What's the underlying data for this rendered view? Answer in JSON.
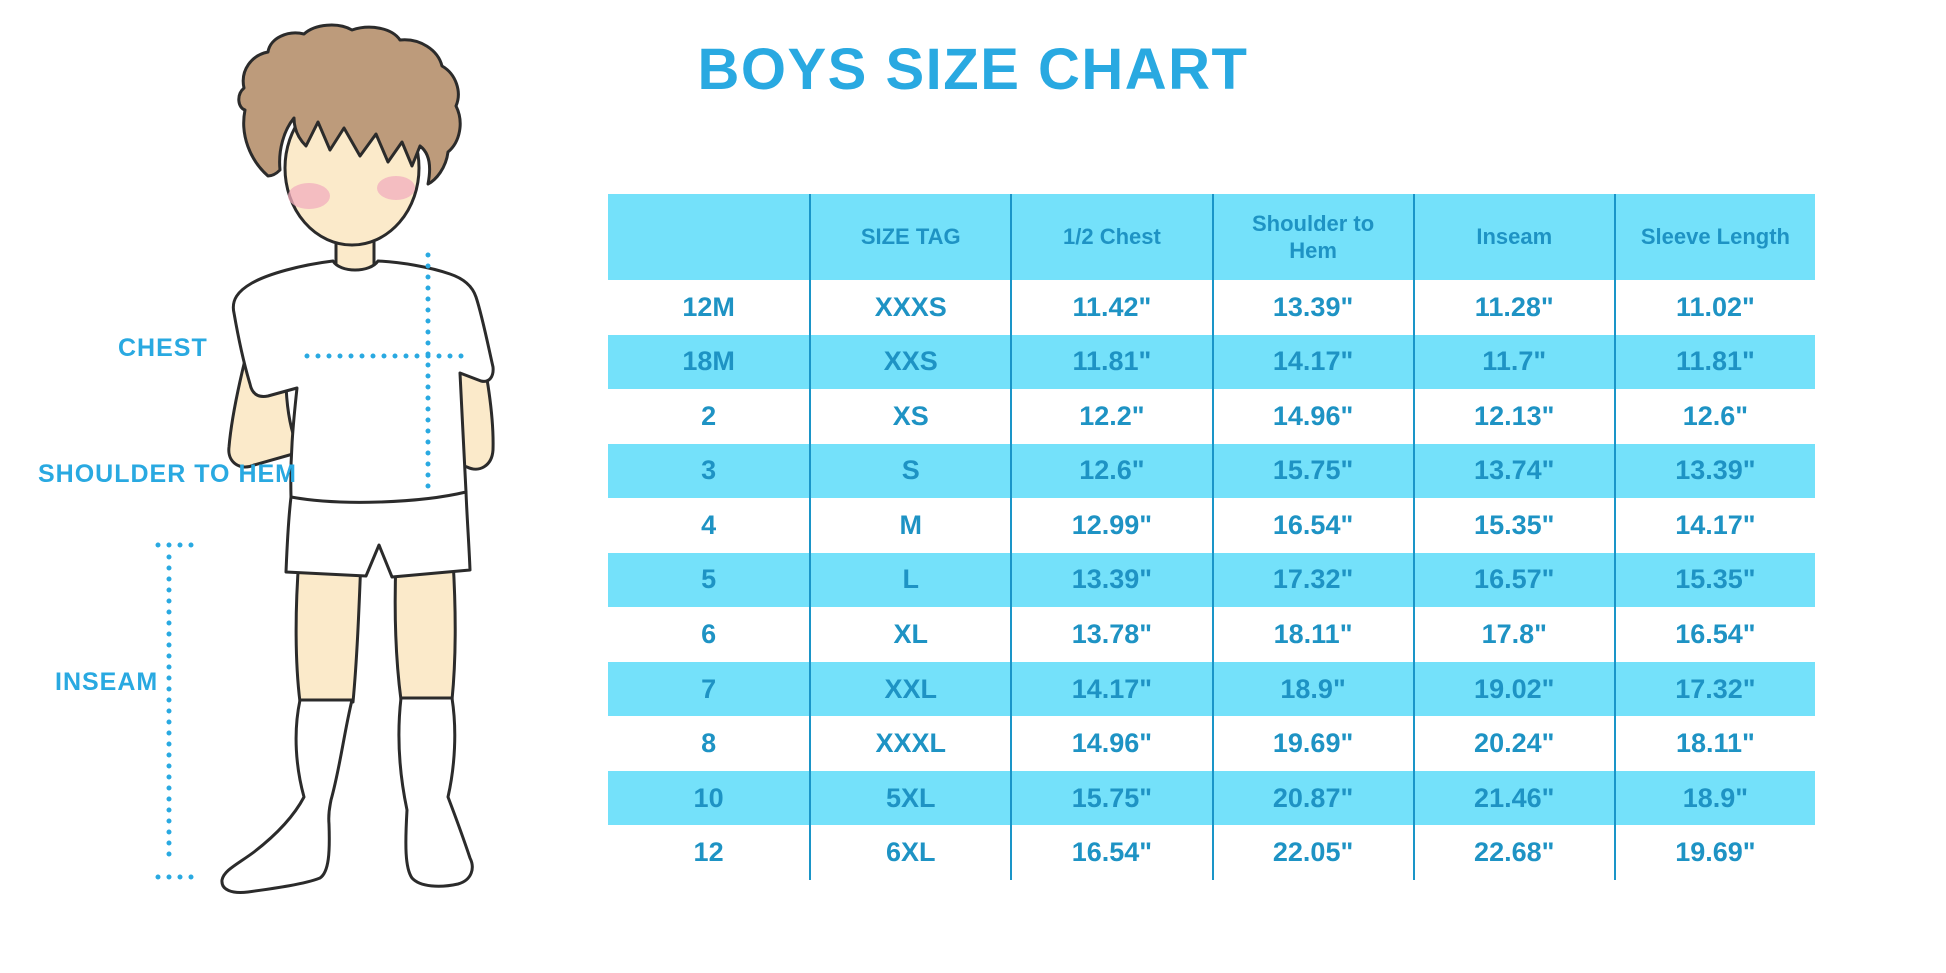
{
  "title": "BOYS SIZE CHART",
  "figure": {
    "labels": {
      "chest": "CHEST",
      "shoulder_to_hem": "SHOULDER TO HEM",
      "inseam": "INSEAM"
    }
  },
  "chart_data": {
    "type": "table",
    "title": "BOYS SIZE CHART",
    "columns": [
      "",
      "SIZE TAG",
      "1/2 Chest",
      "Shoulder to\nHem",
      "Inseam",
      "Sleeve Length"
    ],
    "rows": [
      [
        "12M",
        "XXXS",
        "11.42\"",
        "13.39\"",
        "11.28\"",
        "11.02\""
      ],
      [
        "18M",
        "XXS",
        "11.81\"",
        "14.17\"",
        "11.7\"",
        "11.81\""
      ],
      [
        "2",
        "XS",
        "12.2\"",
        "14.96\"",
        "12.13\"",
        "12.6\""
      ],
      [
        "3",
        "S",
        "12.6\"",
        "15.75\"",
        "13.74\"",
        "13.39\""
      ],
      [
        "4",
        "M",
        "12.99\"",
        "16.54\"",
        "15.35\"",
        "14.17\""
      ],
      [
        "5",
        "L",
        "13.39\"",
        "17.32\"",
        "16.57\"",
        "15.35\""
      ],
      [
        "6",
        "XL",
        "13.78\"",
        "18.11\"",
        "17.8\"",
        "16.54\""
      ],
      [
        "7",
        "XXL",
        "14.17\"",
        "18.9\"",
        "19.02\"",
        "17.32\""
      ],
      [
        "8",
        "XXXL",
        "14.96\"",
        "19.69\"",
        "20.24\"",
        "18.11\""
      ],
      [
        "10",
        "5XL",
        "15.75\"",
        "20.87\"",
        "21.46\"",
        "18.9\""
      ],
      [
        "12",
        "6XL",
        "16.54\"",
        "22.05\"",
        "22.68\"",
        "19.69\""
      ]
    ],
    "highlighted_row_indices": [
      1,
      3,
      5,
      7,
      9
    ],
    "layout": {
      "grid": "off",
      "header_fill": "#74E1FA",
      "zebra_fill": "#74E1FA"
    }
  },
  "colors": {
    "accent": "#29A9E1",
    "band_cyan": "#74E1FA",
    "table_text": "#1E93C4",
    "column_line": "#1A95C8",
    "skin": "#FBEACA",
    "hair": "#BD9B7B",
    "blush": "#F2AEBE",
    "outline": "#2B2B2B"
  }
}
